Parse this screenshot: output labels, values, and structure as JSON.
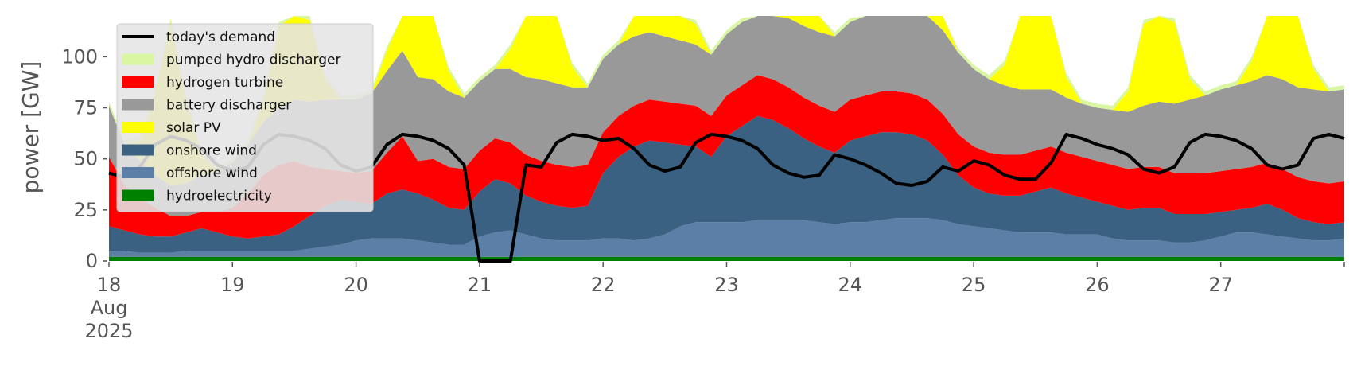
{
  "chart_data": {
    "type": "area",
    "title": "",
    "xlabel": "",
    "ylabel": "power [GW]",
    "xlim": [
      "2025-08-18",
      "2025-08-28"
    ],
    "ylim": [
      0,
      120
    ],
    "yticks": [
      0,
      25,
      50,
      75,
      100
    ],
    "xticks": [
      {
        "date": "2025-08-18",
        "label": "18",
        "label2": "Aug",
        "label3": "2025"
      },
      {
        "date": "2025-08-19",
        "label": "19"
      },
      {
        "date": "2025-08-20",
        "label": "20"
      },
      {
        "date": "2025-08-21",
        "label": "21"
      },
      {
        "date": "2025-08-22",
        "label": "22"
      },
      {
        "date": "2025-08-23",
        "label": "23"
      },
      {
        "date": "2025-08-24",
        "label": "24"
      },
      {
        "date": "2025-08-25",
        "label": "25"
      },
      {
        "date": "2025-08-26",
        "label": "26"
      },
      {
        "date": "2025-08-27",
        "label": "27"
      }
    ],
    "grid": false,
    "legend_position": "top-left",
    "sampling": "3-hourly from 2025-08-18 00:00 to 2025-08-28 00:00",
    "series": [
      {
        "name": "hydroelectricity",
        "color": "#008000",
        "values": [
          2,
          2,
          2,
          2,
          2,
          2,
          2,
          2,
          2,
          2,
          2,
          2,
          2,
          2,
          2,
          2,
          2,
          2,
          2,
          2,
          2,
          2,
          2,
          2,
          2,
          2,
          2,
          2,
          2,
          2,
          2,
          2,
          2,
          2,
          2,
          2,
          2,
          2,
          2,
          2,
          2,
          2,
          2,
          2,
          2,
          2,
          2,
          2,
          2,
          2,
          2,
          2,
          2,
          2,
          2,
          2,
          2,
          2,
          2,
          2,
          2,
          2,
          2,
          2,
          2,
          2,
          2,
          2,
          2,
          2,
          2,
          2,
          2,
          2,
          2,
          2,
          2,
          2,
          2,
          2,
          2
        ]
      },
      {
        "name": "offshore wind",
        "color": "#5b7fa6",
        "values": [
          3,
          3,
          2,
          2,
          2,
          3,
          3,
          3,
          3,
          3,
          3,
          3,
          3,
          4,
          5,
          6,
          8,
          9,
          9,
          9,
          8,
          7,
          6,
          6,
          10,
          12,
          13,
          11,
          9,
          8,
          8,
          8,
          9,
          9,
          8,
          9,
          11,
          15,
          17,
          17,
          17,
          17,
          18,
          18,
          18,
          18,
          17,
          16,
          17,
          17,
          18,
          19,
          19,
          19,
          18,
          16,
          15,
          14,
          13,
          12,
          12,
          12,
          11,
          11,
          11,
          9,
          8,
          8,
          8,
          7,
          7,
          8,
          10,
          12,
          12,
          11,
          10,
          9,
          8,
          8,
          9
        ]
      },
      {
        "name": "onshore wind",
        "color": "#3b6182",
        "values": [
          12,
          10,
          9,
          8,
          8,
          9,
          11,
          9,
          7,
          6,
          7,
          8,
          12,
          16,
          20,
          22,
          19,
          17,
          22,
          24,
          23,
          21,
          18,
          17,
          22,
          26,
          23,
          19,
          18,
          17,
          16,
          17,
          32,
          40,
          46,
          48,
          45,
          40,
          37,
          32,
          42,
          47,
          51,
          49,
          45,
          40,
          37,
          35,
          40,
          42,
          43,
          42,
          41,
          38,
          32,
          24,
          19,
          17,
          17,
          18,
          20,
          22,
          20,
          18,
          16,
          16,
          15,
          16,
          16,
          14,
          14,
          13,
          12,
          11,
          12,
          15,
          13,
          10,
          9,
          8,
          8
        ]
      },
      {
        "name": "hydrogen turbine",
        "color": "#ff0000",
        "values": [
          34,
          22,
          18,
          14,
          10,
          8,
          8,
          10,
          14,
          22,
          30,
          34,
          32,
          24,
          18,
          14,
          14,
          16,
          20,
          26,
          16,
          20,
          20,
          20,
          20,
          20,
          20,
          20,
          20,
          20,
          20,
          20,
          20,
          20,
          20,
          20,
          20,
          20,
          20,
          20,
          20,
          20,
          20,
          20,
          20,
          20,
          20,
          20,
          20,
          20,
          20,
          20,
          20,
          20,
          20,
          20,
          20,
          20,
          20,
          20,
          20,
          20,
          20,
          20,
          20,
          20,
          20,
          20,
          20,
          20,
          20,
          20,
          20,
          20,
          20,
          20,
          20,
          20,
          20,
          20,
          20
        ]
      },
      {
        "name": "battery discharger",
        "color": "#999999",
        "values": [
          25,
          20,
          18,
          16,
          15,
          16,
          18,
          20,
          22,
          24,
          26,
          28,
          30,
          32,
          34,
          35,
          36,
          38,
          40,
          42,
          41,
          39,
          37,
          35,
          34,
          34,
          36,
          38,
          40,
          40,
          39,
          38,
          36,
          35,
          34,
          33,
          32,
          31,
          30,
          30,
          30,
          31,
          32,
          33,
          34,
          35,
          36,
          37,
          38,
          39,
          40,
          41,
          42,
          42,
          41,
          40,
          38,
          36,
          34,
          32,
          30,
          28,
          27,
          26,
          26,
          27,
          28,
          30,
          32,
          34,
          36,
          38,
          40,
          41,
          42,
          43,
          44,
          44,
          45,
          45,
          45
        ]
      },
      {
        "name": "solar PV",
        "color": "#ffff00",
        "values": [
          0,
          0,
          10,
          40,
          80,
          40,
          10,
          0,
          0,
          0,
          10,
          40,
          80,
          40,
          10,
          0,
          0,
          0,
          10,
          40,
          80,
          40,
          10,
          0,
          0,
          0,
          10,
          40,
          80,
          40,
          10,
          0,
          0,
          0,
          10,
          40,
          80,
          40,
          10,
          0,
          0,
          0,
          10,
          40,
          80,
          40,
          10,
          0,
          0,
          0,
          10,
          40,
          80,
          40,
          10,
          0,
          0,
          0,
          10,
          40,
          80,
          40,
          10,
          0,
          0,
          0,
          10,
          40,
          80,
          40,
          10,
          0,
          0,
          0,
          10,
          40,
          80,
          40,
          10,
          0,
          0
        ]
      },
      {
        "name": "pumped hydro discharger",
        "color": "#d9f7a3",
        "values": [
          2,
          2,
          2,
          2,
          2,
          2,
          2,
          2,
          2,
          2,
          2,
          2,
          2,
          2,
          2,
          2,
          2,
          2,
          2,
          2,
          2,
          2,
          2,
          2,
          2,
          2,
          2,
          2,
          2,
          2,
          2,
          2,
          2,
          2,
          2,
          2,
          2,
          2,
          2,
          2,
          2,
          2,
          2,
          2,
          2,
          2,
          2,
          2,
          2,
          2,
          2,
          2,
          2,
          2,
          2,
          2,
          2,
          2,
          2,
          2,
          2,
          2,
          2,
          2,
          2,
          2,
          2,
          2,
          2,
          2,
          2,
          2,
          2,
          2,
          2,
          2,
          2,
          2,
          2,
          2,
          2
        ]
      }
    ],
    "demand": {
      "name": "today's demand",
      "color": "#000000",
      "values": [
        43,
        41,
        46,
        57,
        61,
        59,
        55,
        47,
        44,
        46,
        57,
        62,
        61,
        59,
        55,
        47,
        44,
        46,
        57,
        62,
        61,
        59,
        55,
        47,
        0,
        0,
        0,
        47,
        46,
        58,
        62,
        61,
        59,
        60,
        55,
        47,
        44,
        46,
        58,
        62,
        61,
        59,
        55,
        47,
        43,
        41,
        42,
        52,
        50,
        47,
        43,
        38,
        37,
        39,
        46,
        44,
        49,
        47,
        42,
        40,
        40,
        48,
        62,
        60,
        57,
        55,
        52,
        45,
        43,
        46,
        58,
        62,
        61,
        59,
        55,
        47,
        45,
        47,
        60,
        62,
        60
      ]
    },
    "legend": [
      "today's demand",
      "pumped hydro discharger",
      "hydrogen turbine",
      "battery discharger",
      "solar PV",
      "onshore wind",
      "offshore wind",
      "hydroelectricity"
    ]
  }
}
